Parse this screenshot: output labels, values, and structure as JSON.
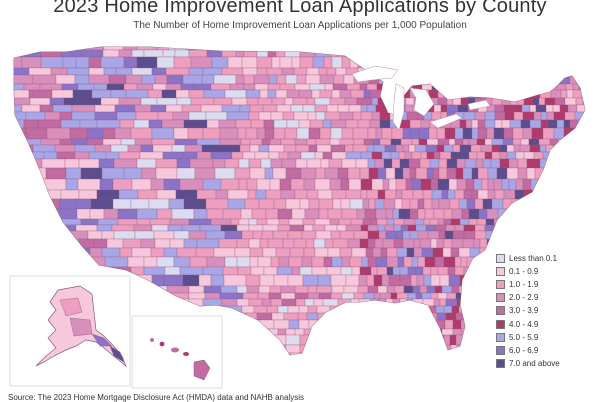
{
  "title": "2023 Home Improvement Loan Applications by County",
  "subtitle": "The Number of Home Improvement Loan Applications per 1,000 Population",
  "source": "Source: The 2023 Home Mortgage Disclosure Act (HMDA) data and NAHB analysis",
  "legend": {
    "items": [
      {
        "label": "Less than 0.1",
        "color": "#dcdcf0"
      },
      {
        "label": "0.1 - 0.9",
        "color": "#f7c8dc"
      },
      {
        "label": "1.0 - 1.9",
        "color": "#ee9fbf"
      },
      {
        "label": "2.0 - 2.9",
        "color": "#d98fbc"
      },
      {
        "label": "3.0 - 3.9",
        "color": "#c26aa2"
      },
      {
        "label": "4.0 - 4.9",
        "color": "#b03a6c"
      },
      {
        "label": "5.0 - 5.9",
        "color": "#a8a6e6"
      },
      {
        "label": "6.0 - 6.9",
        "color": "#8b74c8"
      },
      {
        "label": "7.0 and above",
        "color": "#5b4d8e"
      }
    ]
  }
}
